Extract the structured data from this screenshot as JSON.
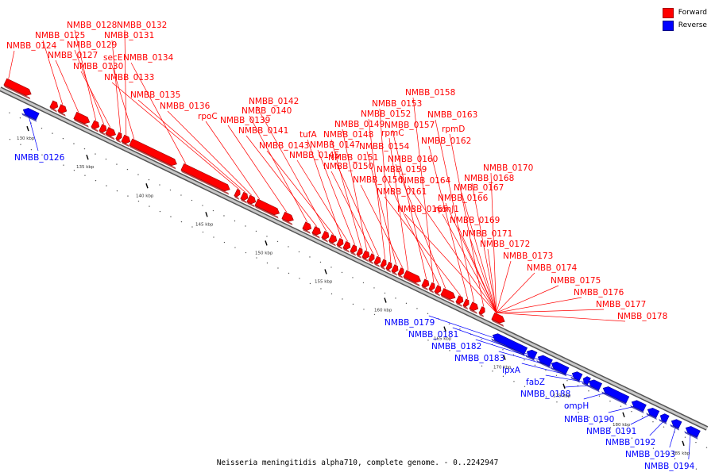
{
  "caption": "Neisseria meningitidis alpha710, complete genome. - 0..2242947",
  "legend": {
    "forward": {
      "label": "Forward",
      "color": "#ff0000"
    },
    "reverse": {
      "label": "Reverse",
      "color": "#0000ff"
    }
  },
  "ticks": [
    {
      "label": "130 kbp",
      "pos": 130
    },
    {
      "label": "135 kbp",
      "pos": 135
    },
    {
      "label": "140 kbp",
      "pos": 140
    },
    {
      "label": "145 kbp",
      "pos": 145
    },
    {
      "label": "150 kbp",
      "pos": 150
    },
    {
      "label": "155 kbp",
      "pos": 155
    },
    {
      "label": "160 kbp",
      "pos": 160
    },
    {
      "label": "165 kbp",
      "pos": 165
    },
    {
      "label": "170 kbp",
      "pos": 170
    },
    {
      "label": "175 kbp",
      "pos": 175
    },
    {
      "label": "180 kbp",
      "pos": 180
    },
    {
      "label": "185 kbp",
      "pos": 185
    }
  ],
  "genes": {
    "forward": [
      "NMBB_0124",
      "NMBB_0125",
      "NMBB_0127",
      "NMBB_0128",
      "NMBB_0129",
      "NMBB_0130",
      "NMBB_0131",
      "NMBB_0132",
      "secE",
      "NMBB_0134",
      "NMBB_0133",
      "NMBB_0135",
      "NMBB_0136",
      "rpoC",
      "NMBB_0139",
      "NMBB_0140",
      "NMBB_0141",
      "NMBB_0142",
      "NMBB_0143",
      "tufA",
      "NMBB_0145",
      "NMBB_0147",
      "NMBB_0148",
      "NMBB_0149",
      "NMBB_0150",
      "NMBB_0151",
      "NMBB_0152",
      "NMBB_0153",
      "NMBB_0154",
      "NMBB_0156",
      "rpmC",
      "NMBB_0157",
      "NMBB_0158",
      "NMBB_0159",
      "NMBB_0160",
      "NMBB_0161",
      "NMBB_0162",
      "NMBB_0163",
      "rpmD",
      "NMBB_0164",
      "NMBB_0165",
      "rpmJ1",
      "NMBB_0166",
      "NMBB_0167",
      "NMBB_0168",
      "NMBB_0169",
      "NMBB_0170",
      "NMBB_0171",
      "NMBB_0172",
      "NMBB_0173",
      "NMBB_0174",
      "NMBB_0175",
      "NMBB_0176",
      "NMBB_0177",
      "NMBB_0178"
    ],
    "reverse": [
      "NMBB_0126",
      "NMBB_0179",
      "NMBB_0181",
      "NMBB_0182",
      "NMBB_0183",
      "lpxA",
      "fabZ",
      "NMBB_0188",
      "ompH",
      "NMBB_0190",
      "NMBB_0191",
      "NMBB_0192",
      "NMBB_0193",
      "NMBB_0194"
    ]
  }
}
